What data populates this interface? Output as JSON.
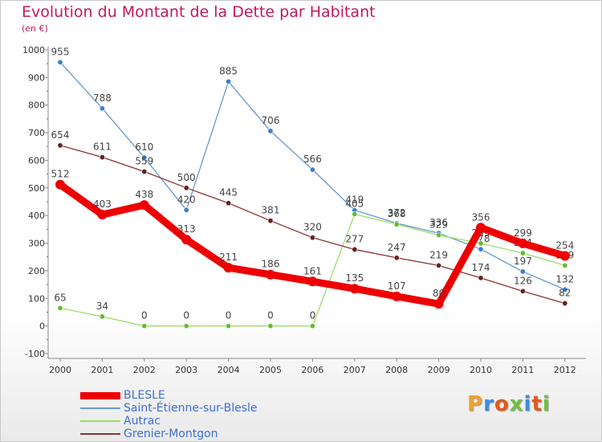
{
  "title": "Evolution du Montant de la Dette par Habitant",
  "subtitle": "(en €)",
  "logo": {
    "text": "Proxiti",
    "colors": [
      "#f0a030",
      "#3a8ee0",
      "#e05a20",
      "#70c040",
      "#3a8ee0",
      "#e05a20",
      "#70c040"
    ]
  },
  "chart_data": {
    "type": "line",
    "x": [
      "2000",
      "2001",
      "2002",
      "2003",
      "2004",
      "2005",
      "2006",
      "2007",
      "2008",
      "2009",
      "2010",
      "2011",
      "2012"
    ],
    "ylim": [
      -100,
      1000
    ],
    "yticks": [
      "-100",
      "0",
      "100",
      "200",
      "300",
      "400",
      "500",
      "600",
      "700",
      "800",
      "900",
      "1000"
    ],
    "grid": false,
    "legend_position": "bottom-left",
    "series": [
      {
        "name": "Saint-Étienne-sur-Blesle",
        "color": "#6699cc",
        "marker": "#3b7fd0",
        "values": [
          955,
          788,
          610,
          420,
          885,
          706,
          566,
          419,
          372,
          336,
          278,
          197,
          132
        ],
        "labels": [
          "955",
          "788",
          "610",
          "420",
          "885",
          "706",
          "566",
          "419",
          "372",
          "336",
          "278",
          "197",
          "132"
        ]
      },
      {
        "name": "Autrac",
        "color": "#99dd66",
        "marker": "#66bb33",
        "values": [
          65,
          34,
          0,
          0,
          0,
          0,
          0,
          405,
          368,
          329,
          299,
          264,
          219
        ],
        "labels": [
          "65",
          "34",
          "0",
          "0",
          "0",
          "0",
          "0",
          "405",
          "368",
          "329",
          "299",
          "264",
          "219"
        ]
      },
      {
        "name": "Grenier-Montgon",
        "color": "#883333",
        "marker": "#662222",
        "values": [
          654,
          611,
          559,
          500,
          445,
          381,
          320,
          277,
          247,
          219,
          174,
          126,
          82
        ],
        "labels": [
          "654",
          "611",
          "559",
          "500",
          "445",
          "381",
          "320",
          "277",
          "247",
          "219",
          "174",
          "126",
          "82"
        ]
      },
      {
        "name": "BLESLE",
        "color": "#ee0000",
        "marker": "#ee0000",
        "values": [
          512,
          403,
          438,
          313,
          211,
          186,
          161,
          135,
          107,
          80,
          356,
          299,
          254
        ],
        "labels": [
          "512",
          "403",
          "438",
          "313",
          "211",
          "186",
          "161",
          "135",
          "107",
          "80",
          "356",
          "299",
          "254"
        ]
      }
    ],
    "legend_order": [
      "BLESLE",
      "Saint-Étienne-sur-Blesle",
      "Autrac",
      "Grenier-Montgon"
    ]
  }
}
